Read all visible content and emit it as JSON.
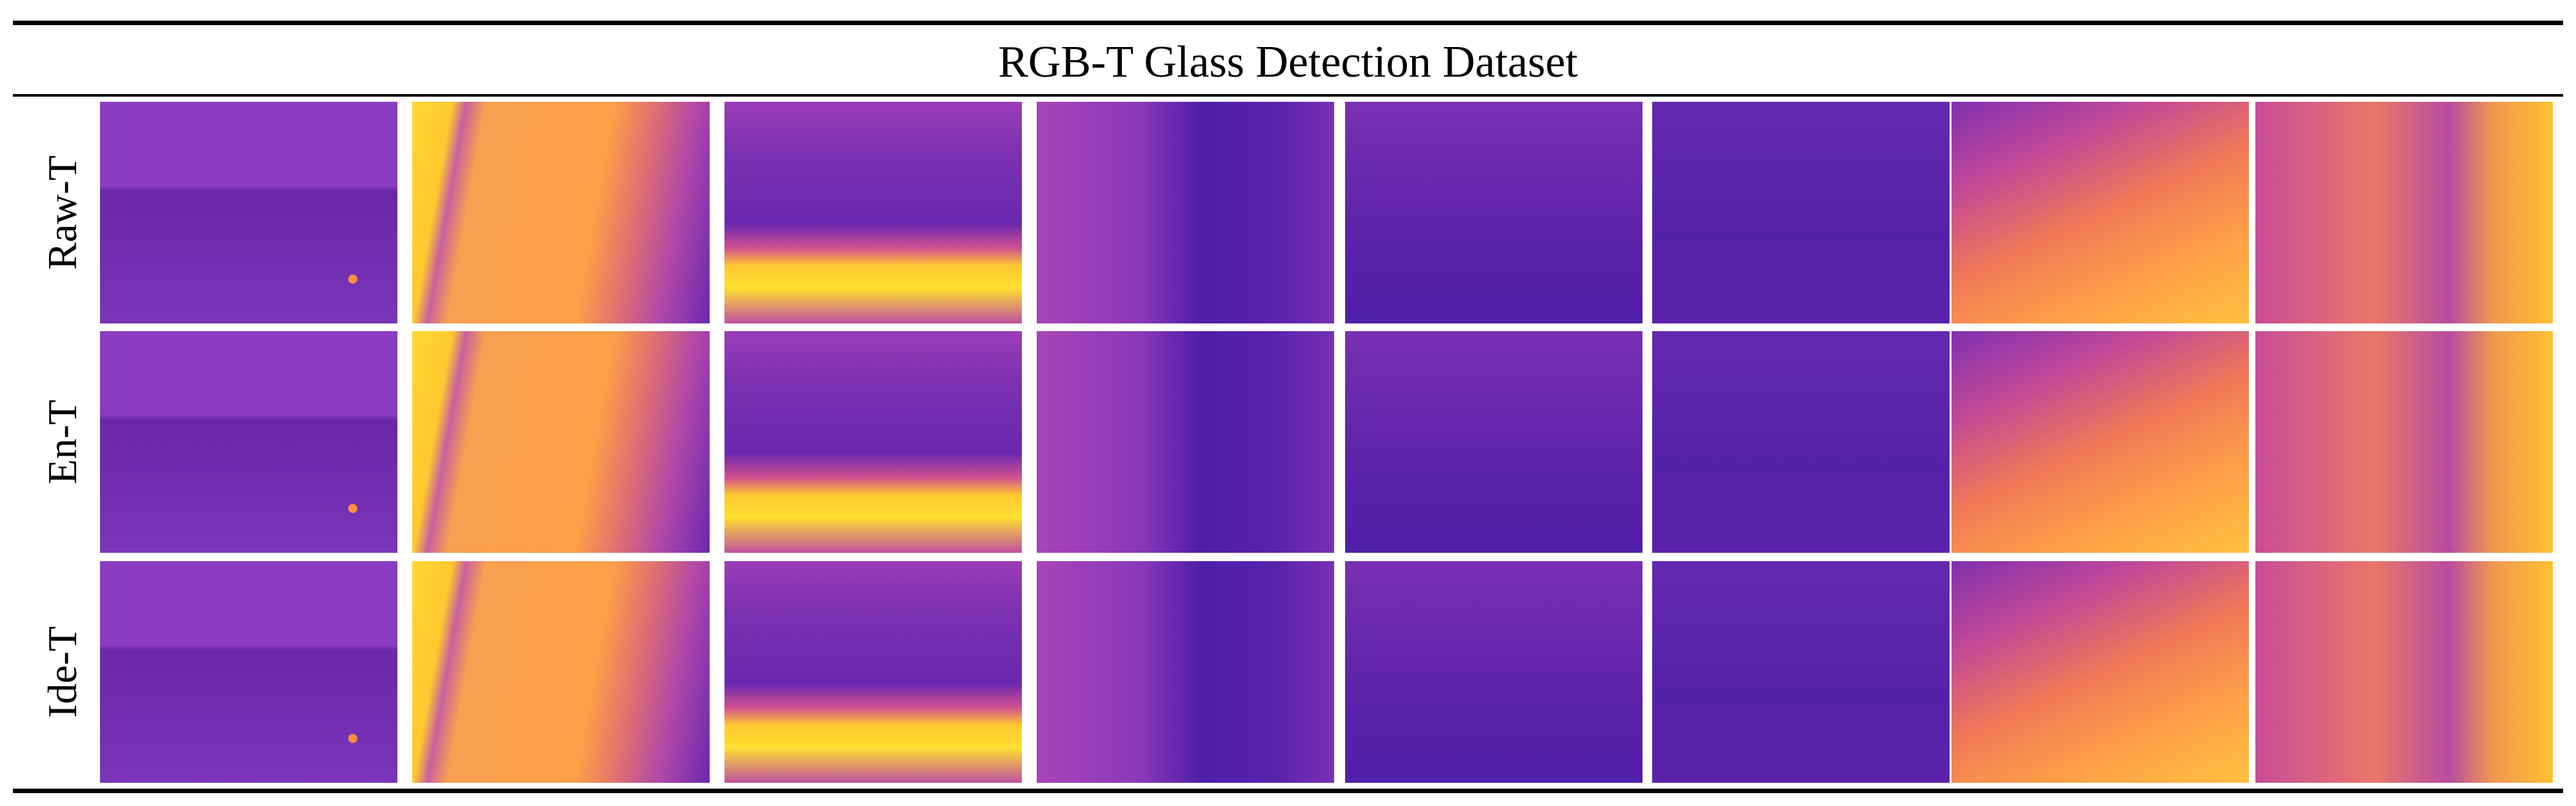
{
  "header": {
    "title": "RGB-T Glass Detection Dataset"
  },
  "rows": [
    {
      "label": "Raw-T"
    },
    {
      "label": "En-T"
    },
    {
      "label": "Ide-T"
    }
  ]
}
